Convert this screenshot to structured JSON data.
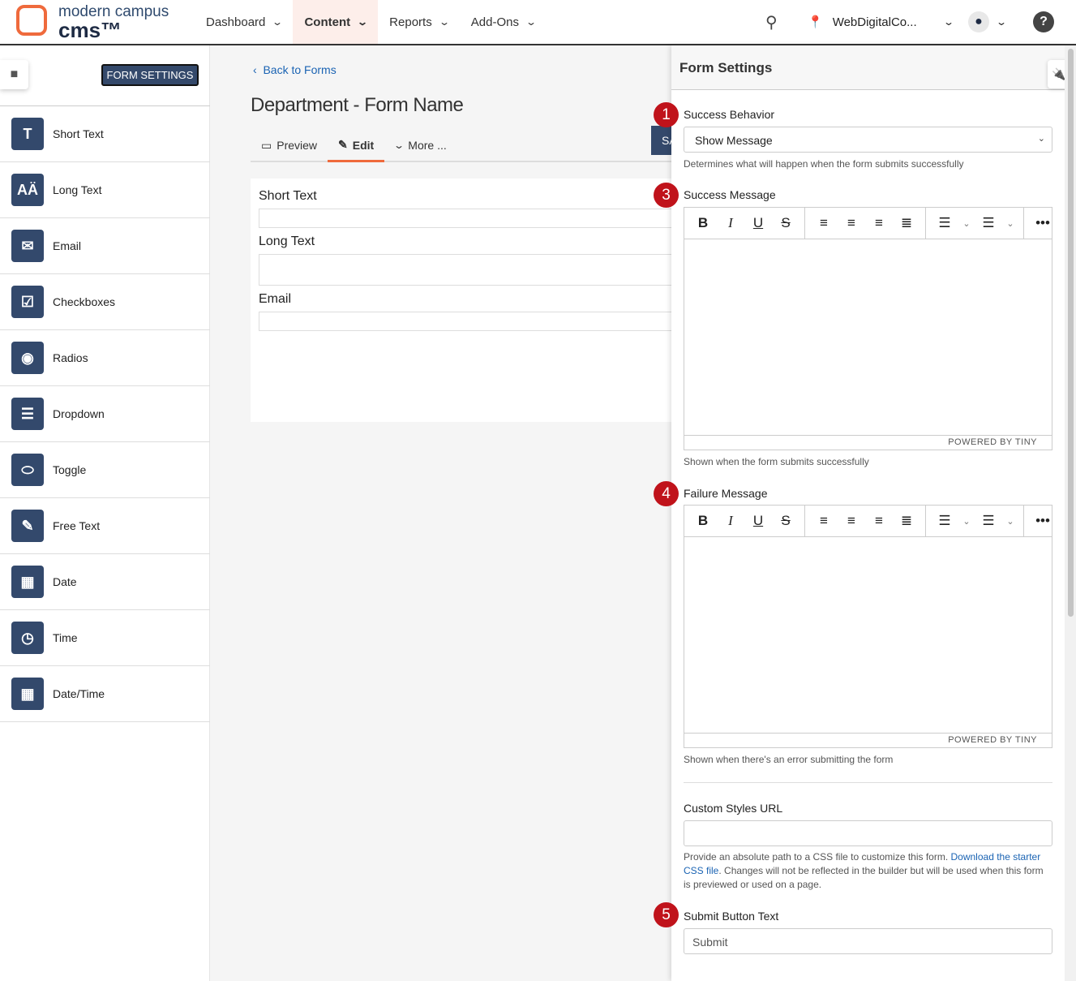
{
  "header": {
    "logo_line1": "modern campus",
    "logo_line2": "cms™",
    "nav": [
      {
        "label": "Dashboard",
        "active": false
      },
      {
        "label": "Content",
        "active": true
      },
      {
        "label": "Reports",
        "active": false
      },
      {
        "label": "Add-Ons",
        "active": false
      }
    ],
    "site": "WebDigitalCo..."
  },
  "sidebar": {
    "form_settings_label": "FORM SETTINGS",
    "items": [
      {
        "label": "Short Text",
        "icon": "T"
      },
      {
        "label": "Long Text",
        "icon": "AÄ"
      },
      {
        "label": "Email",
        "icon": "✉"
      },
      {
        "label": "Checkboxes",
        "icon": "☑"
      },
      {
        "label": "Radios",
        "icon": "◉"
      },
      {
        "label": "Dropdown",
        "icon": "☰"
      },
      {
        "label": "Toggle",
        "icon": "⬭"
      },
      {
        "label": "Free Text",
        "icon": "✎"
      },
      {
        "label": "Date",
        "icon": "▦"
      },
      {
        "label": "Time",
        "icon": "◷"
      },
      {
        "label": "Date/Time",
        "icon": "▦"
      }
    ]
  },
  "main": {
    "back_label": "Back to Forms",
    "title": "Department - Form Name",
    "tabs": [
      {
        "label": "Preview",
        "icon": "🖵"
      },
      {
        "label": "Edit",
        "icon": "✎"
      },
      {
        "label": "More ...",
        "icon": "⌄"
      }
    ],
    "save_label": "SAVE",
    "fields": [
      {
        "label": "Short Text"
      },
      {
        "label": "Long Text"
      },
      {
        "label": "Email"
      }
    ]
  },
  "panel": {
    "title": "Form Settings",
    "success_behavior": {
      "badge": "1",
      "label": "Success Behavior",
      "value": "Show Message",
      "help": "Determines what will happen when the form submits successfully"
    },
    "success_message": {
      "badge": "3",
      "label": "Success Message",
      "help": "Shown when the form submits successfully"
    },
    "failure_message": {
      "badge": "4",
      "label": "Failure Message",
      "help": "Shown when there's an error submitting the form"
    },
    "editor": {
      "powered": "POWERED BY TINY",
      "groups": [
        [
          {
            "n": "bold",
            "g": "B"
          },
          {
            "n": "italic",
            "g": "I"
          },
          {
            "n": "underline",
            "g": "U"
          },
          {
            "n": "strikethrough",
            "g": "S"
          }
        ],
        [
          {
            "n": "align-left",
            "g": "≡"
          },
          {
            "n": "align-center",
            "g": "≡"
          },
          {
            "n": "align-right",
            "g": "≡"
          },
          {
            "n": "justify",
            "g": "≣"
          }
        ],
        [
          {
            "n": "bullet-list",
            "g": "☰"
          },
          {
            "n": "bullet-list-dropdown",
            "g": "⌄",
            "sm": true
          },
          {
            "n": "numbered-list",
            "g": "☰"
          },
          {
            "n": "numbered-list-dropdown",
            "g": "⌄",
            "sm": true
          }
        ],
        [
          {
            "n": "more",
            "g": "•••"
          }
        ]
      ]
    },
    "custom_styles": {
      "label": "Custom Styles URL",
      "help_pre": "Provide an absolute path to a CSS file to customize this form. ",
      "help_link": "Download the starter CSS file",
      "help_post": ". Changes will not be reflected in the builder but will be used when this form is previewed or used on a page."
    },
    "submit": {
      "badge": "5",
      "label": "Submit Button Text",
      "value": "Submit"
    }
  },
  "colors": {
    "accent": "#ef6a3c",
    "primary": "#34496b",
    "badge": "#c0131b",
    "link": "#1a63b3"
  }
}
